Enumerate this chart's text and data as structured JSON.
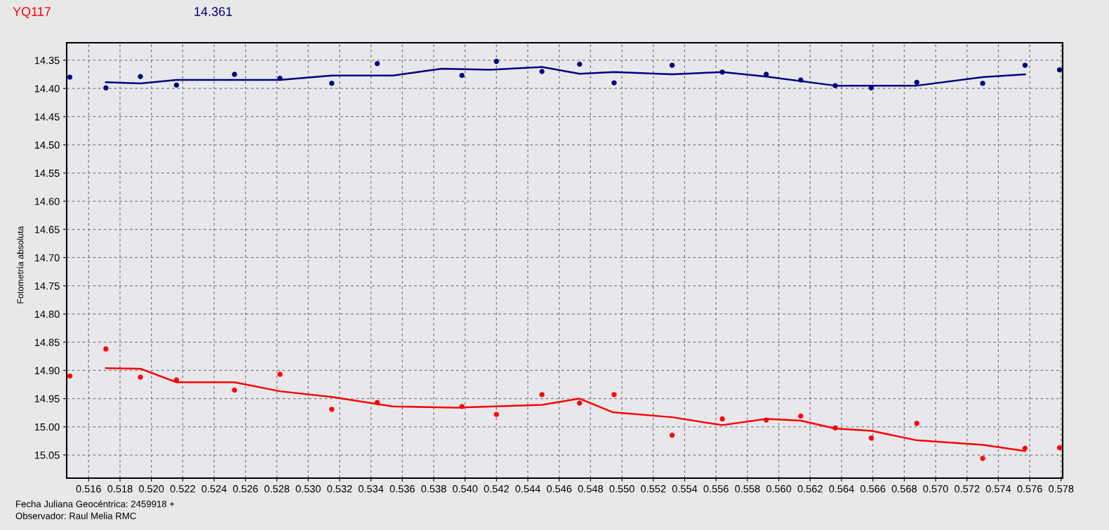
{
  "chart_data": {
    "type": "scatter",
    "title": "YQ117",
    "subtitle": "14.361",
    "ylabel": "Fotometría absoluta",
    "annotations": [
      "Fecha Juliana Geocéntrica: 2459918 +",
      "Observador: Raul Melia RMC"
    ],
    "x": [
      0.5148,
      0.5171,
      0.5193,
      0.5216,
      0.5253,
      0.5282,
      0.5315,
      0.5344,
      0.5398,
      0.542,
      0.5449,
      0.5473,
      0.5495,
      0.5532,
      0.5564,
      0.5592,
      0.5614,
      0.5636,
      0.5659,
      0.5688,
      0.573,
      0.5757,
      0.5779
    ],
    "series": [
      {
        "color": "#000080",
        "marker": "circle",
        "values": [
          14.38,
          14.399,
          14.379,
          14.394,
          14.375,
          14.382,
          14.391,
          14.356,
          14.377,
          14.352,
          14.37,
          14.357,
          14.39,
          14.359,
          14.371,
          14.375,
          14.385,
          14.395,
          14.399,
          14.389,
          14.391,
          14.359,
          14.367
        ]
      },
      {
        "color": "#ff0000",
        "marker": "circle",
        "values": [
          14.91,
          14.862,
          14.912,
          14.917,
          14.935,
          14.907,
          14.969,
          14.957,
          14.964,
          14.978,
          14.943,
          14.958,
          14.943,
          15.015,
          14.986,
          14.988,
          14.981,
          15.002,
          15.02,
          14.994,
          15.056,
          15.038,
          15.037
        ]
      },
      {
        "type": "line",
        "color": "#000080",
        "x": [
          0.5171,
          0.5193,
          0.5216,
          0.5282,
          0.5315,
          0.5354,
          0.5385,
          0.5416,
          0.5449,
          0.5473,
          0.5495,
          0.5532,
          0.5564,
          0.5592,
          0.5636,
          0.5688,
          0.573,
          0.5757
        ],
        "values": [
          14.389,
          14.391,
          14.385,
          14.385,
          14.377,
          14.377,
          14.365,
          14.367,
          14.362,
          14.374,
          14.371,
          14.375,
          14.371,
          14.379,
          14.395,
          14.395,
          14.38,
          14.375
        ]
      },
      {
        "type": "line",
        "color": "#ff0000",
        "x": [
          0.5171,
          0.5193,
          0.5216,
          0.5253,
          0.5282,
          0.5315,
          0.5354,
          0.5394,
          0.5449,
          0.5473,
          0.5494,
          0.5532,
          0.5564,
          0.5592,
          0.5614,
          0.5636,
          0.5659,
          0.5688,
          0.573,
          0.5757
        ],
        "values": [
          14.896,
          14.897,
          14.921,
          14.921,
          14.937,
          14.947,
          14.964,
          14.966,
          14.961,
          14.95,
          14.974,
          14.983,
          14.997,
          14.986,
          14.989,
          15.003,
          15.007,
          15.024,
          15.032,
          15.043
        ]
      }
    ],
    "line_style": "solid",
    "grid": true,
    "legend": false,
    "xlim": [
      0.5146,
      0.5781
    ],
    "ylim": [
      15.091,
      14.319
    ],
    "xticks": [
      0.516,
      0.518,
      {
        "value": 0.52,
        "label": "0.520"
      },
      0.522,
      0.524,
      0.526,
      0.528,
      {
        "value": 0.53,
        "label": "0.530"
      },
      0.532,
      0.534,
      0.536,
      0.538,
      {
        "value": 0.54,
        "label": "0.540"
      },
      0.542,
      0.544,
      0.546,
      0.548,
      {
        "value": 0.55,
        "label": "0.550"
      },
      0.552,
      0.554,
      0.556,
      0.558,
      {
        "value": 0.56,
        "label": "0.560"
      },
      0.562,
      0.564,
      0.566,
      0.568,
      {
        "value": 0.57,
        "label": "0.570"
      },
      0.572,
      0.574,
      0.576,
      0.578
    ],
    "yticks": [
      14.35,
      {
        "value": 14.4,
        "label": "14.40"
      },
      14.45,
      {
        "value": 14.5,
        "label": "14.50"
      },
      14.55,
      {
        "value": 14.6,
        "label": "14.60"
      },
      14.65,
      {
        "value": 14.7,
        "label": "14.70"
      },
      14.75,
      {
        "value": 14.8,
        "label": "14.80"
      },
      14.85,
      {
        "value": 14.9,
        "label": "14.90"
      },
      14.95,
      {
        "value": 15.0,
        "label": "15.00"
      },
      15.05
    ]
  }
}
